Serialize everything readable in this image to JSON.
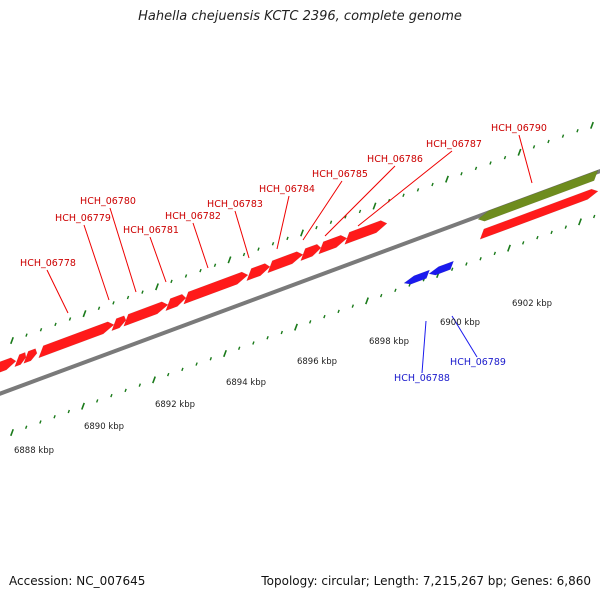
{
  "title": "Hahella chejuensis KCTC 2396, complete genome",
  "footer": {
    "accession": "Accession: NC_007645",
    "summary": "Topology: circular; Length: 7,215,267 bp; Genes: 6,860"
  },
  "colors": {
    "forward_gene": "#ff1a1a",
    "reverse_gene": "#1a1aee",
    "feature_band": "#6e8c1e",
    "backbone": "#7a7a7a",
    "ticks": "#1a7a1a"
  },
  "scale_labels": [
    "6888 kbp",
    "6890 kbp",
    "6892 kbp",
    "6894 kbp",
    "6896 kbp",
    "6898 kbp",
    "6900 kbp",
    "6902 kbp"
  ],
  "forward_genes": [
    "HCH_06778",
    "HCH_06779",
    "HCH_06780",
    "HCH_06781",
    "HCH_06782",
    "HCH_06783",
    "HCH_06784",
    "HCH_06785",
    "HCH_06786",
    "HCH_06787",
    "HCH_06790"
  ],
  "reverse_genes": [
    "HCH_06788",
    "HCH_06789"
  ]
}
